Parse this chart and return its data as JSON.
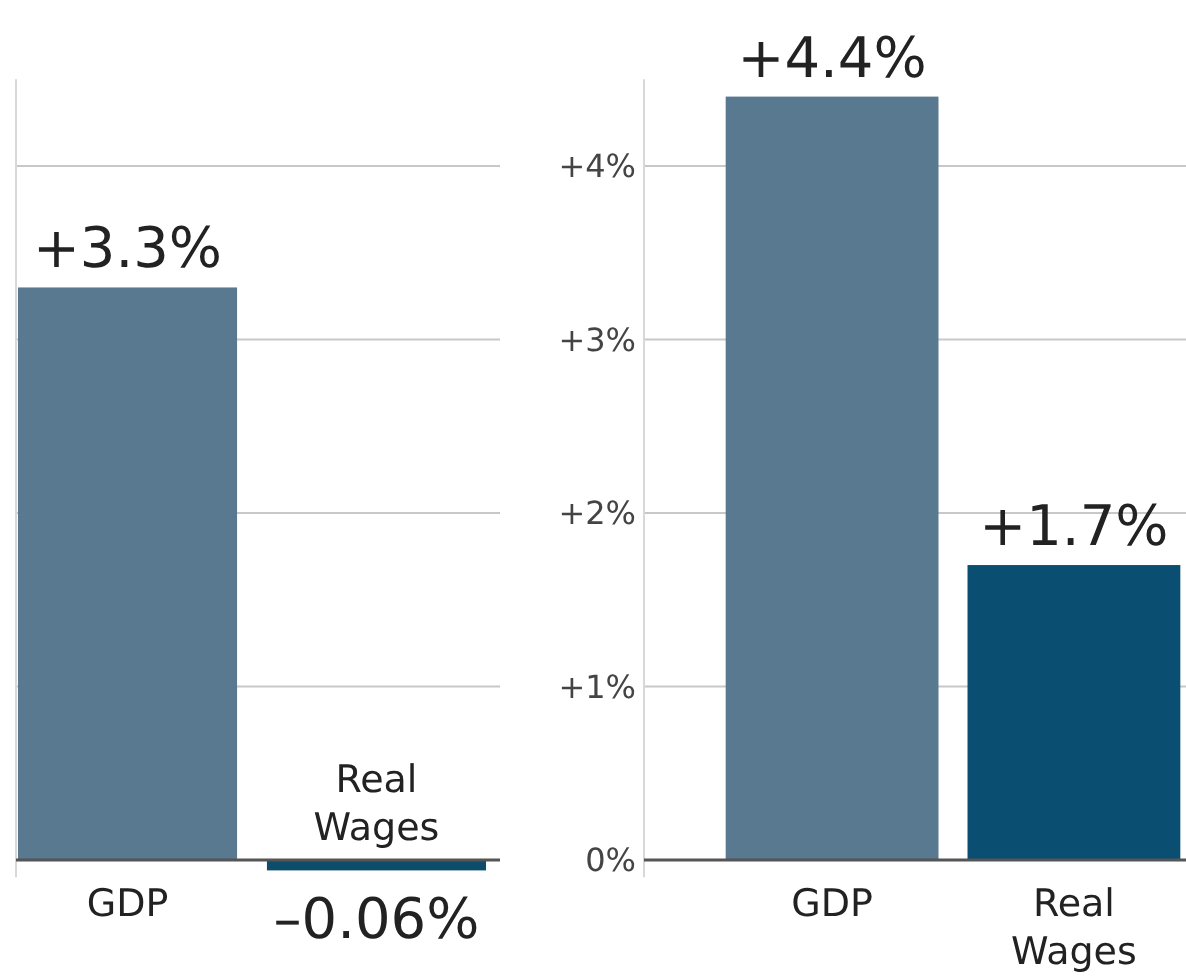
{
  "chart_data": [
    {
      "type": "bar",
      "categories": [
        "GDP",
        "Real Wages"
      ],
      "values": [
        3.3,
        -0.06
      ],
      "colors": [
        "#58798f",
        "#0d4d6b"
      ],
      "value_labels": [
        "+3.3%",
        "–0.06%"
      ],
      "ylim": [
        -0.1,
        4.5
      ],
      "yticks": [
        {
          "value": 0,
          "label": null
        },
        {
          "value": 1,
          "label": null
        },
        {
          "value": 2,
          "label": null
        },
        {
          "value": 3,
          "label": null
        },
        {
          "value": 4,
          "label": null
        }
      ],
      "grid": "y",
      "tick_labels": "x"
    },
    {
      "type": "bar",
      "categories": [
        "GDP",
        "Real Wages"
      ],
      "values": [
        4.4,
        1.7
      ],
      "colors": [
        "#58798f",
        "#0a4f72"
      ],
      "value_labels": [
        "+4.4%",
        "+1.7%"
      ],
      "ylim": [
        -0.1,
        4.5
      ],
      "yticks": [
        {
          "value": 0,
          "label": "0%"
        },
        {
          "value": 1,
          "label": "+1%"
        },
        {
          "value": 2,
          "label": "+2%"
        },
        {
          "value": 3,
          "label": "+3%"
        },
        {
          "value": 4,
          "label": "+4%"
        }
      ],
      "grid": "y"
    }
  ]
}
